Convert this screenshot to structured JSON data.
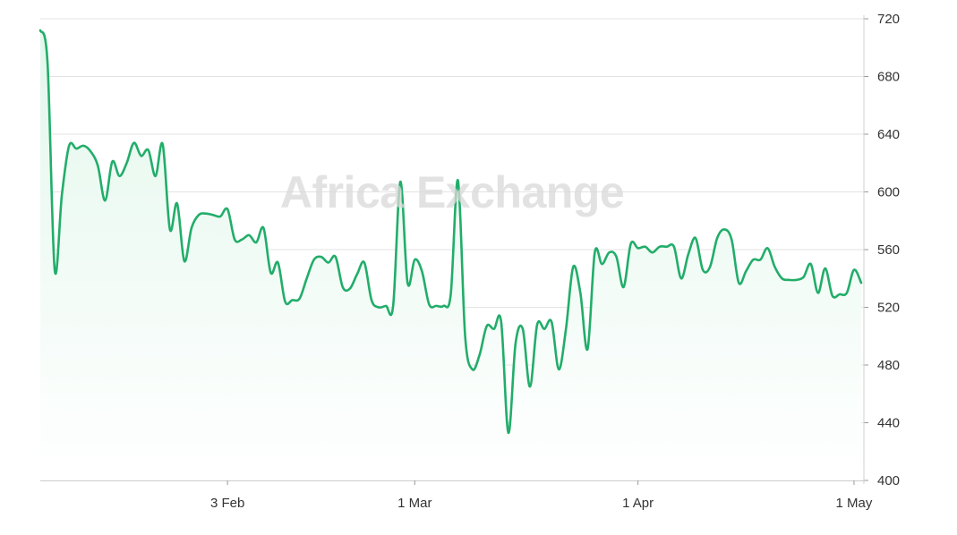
{
  "watermark": "Africa Exchange",
  "colors": {
    "line": "#22ad6a",
    "fill_top": "#e3f7ec",
    "fill_bottom": "#ffffff",
    "grid": "#e3e3e3",
    "text": "#333333"
  },
  "chart_data": {
    "type": "area",
    "title": "",
    "xlabel": "",
    "ylabel": "",
    "ylim": [
      400,
      720
    ],
    "y_ticks": [
      "720",
      "680",
      "640",
      "600",
      "560",
      "520",
      "480",
      "440",
      "400"
    ],
    "y_axis_position": "right",
    "x_range": [
      "2025-01-08",
      "2025-05-02"
    ],
    "x_ticks": [
      {
        "date": "2025-02-03",
        "label": "3 Feb"
      },
      {
        "date": "2025-03-01",
        "label": "1 Mar"
      },
      {
        "date": "2025-04-01",
        "label": "1 Apr"
      },
      {
        "date": "2025-05-01",
        "label": "1 May"
      }
    ],
    "grid": true,
    "series": [
      {
        "values": [
          [
            "2025-01-08",
            712
          ],
          [
            "2025-01-09",
            690
          ],
          [
            "2025-01-10",
            546
          ],
          [
            "2025-01-11",
            598
          ],
          [
            "2025-01-12",
            632
          ],
          [
            "2025-01-13",
            630
          ],
          [
            "2025-01-14",
            632
          ],
          [
            "2025-01-15",
            628
          ],
          [
            "2025-01-16",
            618
          ],
          [
            "2025-01-17",
            594
          ],
          [
            "2025-01-18",
            621
          ],
          [
            "2025-01-19",
            611
          ],
          [
            "2025-01-20",
            620
          ],
          [
            "2025-01-21",
            634
          ],
          [
            "2025-01-22",
            625
          ],
          [
            "2025-01-23",
            629
          ],
          [
            "2025-01-24",
            611
          ],
          [
            "2025-01-25",
            633
          ],
          [
            "2025-01-26",
            574
          ],
          [
            "2025-01-27",
            592
          ],
          [
            "2025-01-28",
            552
          ],
          [
            "2025-01-29",
            575
          ],
          [
            "2025-01-30",
            584
          ],
          [
            "2025-01-31",
            585
          ],
          [
            "2025-02-01",
            584
          ],
          [
            "2025-02-02",
            583
          ],
          [
            "2025-02-03",
            588
          ],
          [
            "2025-02-04",
            567
          ],
          [
            "2025-02-05",
            567
          ],
          [
            "2025-02-06",
            570
          ],
          [
            "2025-02-07",
            565
          ],
          [
            "2025-02-08",
            575
          ],
          [
            "2025-02-09",
            544
          ],
          [
            "2025-02-10",
            551
          ],
          [
            "2025-02-11",
            524
          ],
          [
            "2025-02-12",
            525
          ],
          [
            "2025-02-13",
            526
          ],
          [
            "2025-02-14",
            540
          ],
          [
            "2025-02-15",
            553
          ],
          [
            "2025-02-16",
            555
          ],
          [
            "2025-02-17",
            551
          ],
          [
            "2025-02-18",
            555
          ],
          [
            "2025-02-19",
            534
          ],
          [
            "2025-02-20",
            533
          ],
          [
            "2025-02-21",
            543
          ],
          [
            "2025-02-22",
            551
          ],
          [
            "2025-02-23",
            525
          ],
          [
            "2025-02-24",
            520
          ],
          [
            "2025-02-25",
            521
          ],
          [
            "2025-02-26",
            521
          ],
          [
            "2025-02-27",
            607
          ],
          [
            "2025-02-28",
            537
          ],
          [
            "2025-03-01",
            553
          ],
          [
            "2025-03-02",
            545
          ],
          [
            "2025-03-03",
            522
          ],
          [
            "2025-03-04",
            521
          ],
          [
            "2025-03-05",
            521
          ],
          [
            "2025-03-06",
            529
          ],
          [
            "2025-03-07",
            608
          ],
          [
            "2025-03-08",
            500
          ],
          [
            "2025-03-09",
            477
          ],
          [
            "2025-03-10",
            487
          ],
          [
            "2025-03-11",
            507
          ],
          [
            "2025-03-12",
            505
          ],
          [
            "2025-03-13",
            510
          ],
          [
            "2025-03-14",
            433
          ],
          [
            "2025-03-15",
            495
          ],
          [
            "2025-03-16",
            505
          ],
          [
            "2025-03-17",
            465
          ],
          [
            "2025-03-18",
            508
          ],
          [
            "2025-03-19",
            505
          ],
          [
            "2025-03-20",
            510
          ],
          [
            "2025-03-21",
            477
          ],
          [
            "2025-03-22",
            505
          ],
          [
            "2025-03-23",
            548
          ],
          [
            "2025-03-24",
            530
          ],
          [
            "2025-03-25",
            491
          ],
          [
            "2025-03-26",
            558
          ],
          [
            "2025-03-27",
            550
          ],
          [
            "2025-03-28",
            558
          ],
          [
            "2025-03-29",
            555
          ],
          [
            "2025-03-30",
            534
          ],
          [
            "2025-03-31",
            564
          ],
          [
            "2025-04-01",
            561
          ],
          [
            "2025-04-02",
            562
          ],
          [
            "2025-04-03",
            558
          ],
          [
            "2025-04-04",
            562
          ],
          [
            "2025-04-05",
            562
          ],
          [
            "2025-04-06",
            562
          ],
          [
            "2025-04-07",
            540
          ],
          [
            "2025-04-08",
            557
          ],
          [
            "2025-04-09",
            568
          ],
          [
            "2025-04-10",
            546
          ],
          [
            "2025-04-11",
            548
          ],
          [
            "2025-04-12",
            568
          ],
          [
            "2025-04-13",
            574
          ],
          [
            "2025-04-14",
            567
          ],
          [
            "2025-04-15",
            537
          ],
          [
            "2025-04-16",
            545
          ],
          [
            "2025-04-17",
            553
          ],
          [
            "2025-04-18",
            553
          ],
          [
            "2025-04-19",
            561
          ],
          [
            "2025-04-20",
            548
          ],
          [
            "2025-04-21",
            540
          ],
          [
            "2025-04-22",
            539
          ],
          [
            "2025-04-23",
            539
          ],
          [
            "2025-04-24",
            541
          ],
          [
            "2025-04-25",
            550
          ],
          [
            "2025-04-26",
            530
          ],
          [
            "2025-04-27",
            547
          ],
          [
            "2025-04-28",
            528
          ],
          [
            "2025-04-29",
            529
          ],
          [
            "2025-04-30",
            530
          ],
          [
            "2025-05-01",
            546
          ],
          [
            "2025-05-02",
            537
          ],
          [
            "2025-05-03",
            552
          ],
          [
            "2025-05-04",
            552
          ]
        ]
      }
    ]
  }
}
